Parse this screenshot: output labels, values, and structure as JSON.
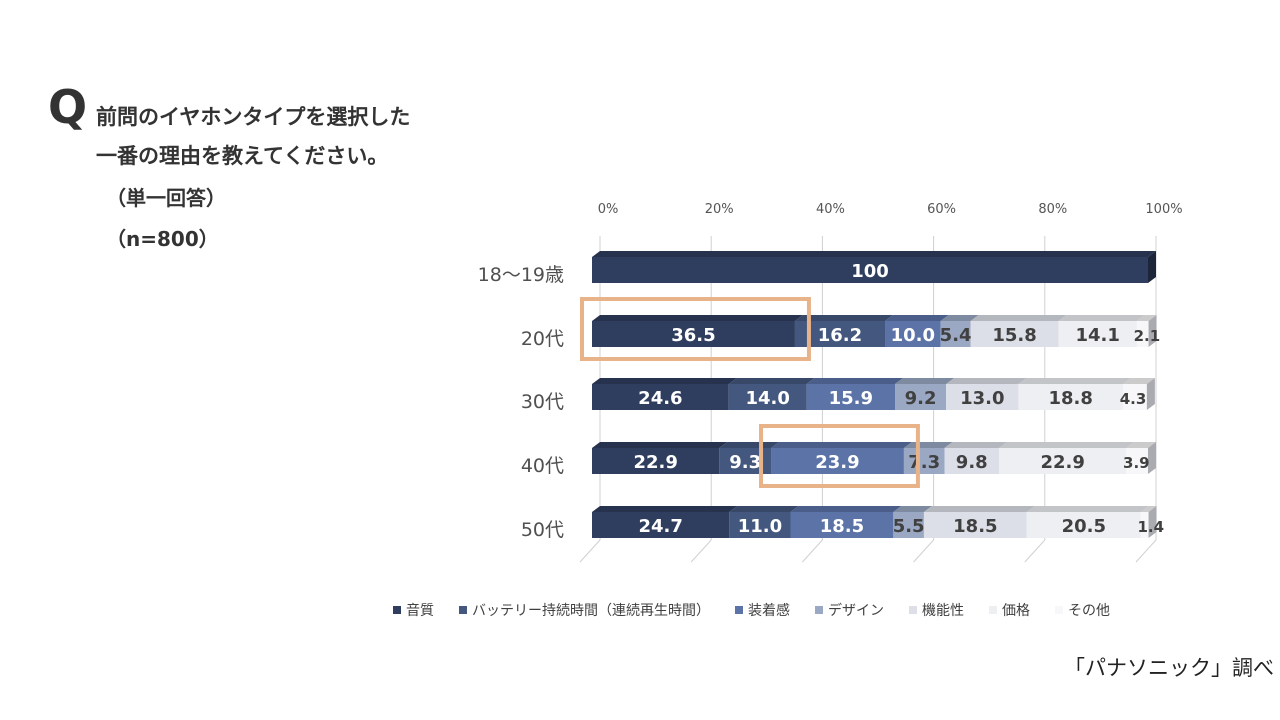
{
  "question": {
    "mark": "Q",
    "line1": "前問のイヤホンタイプを選択した",
    "line2": "一番の理由を教えてください。",
    "answer_type": "（単一回答）",
    "sample": "（n=800）"
  },
  "source": "「パナソニック」調べ",
  "colors": {
    "series": [
      "#2f3e5f",
      "#44587f",
      "#5b73a7",
      "#9aa8c3",
      "#dcdfe8",
      "#eeeff3",
      "#f7f7f9"
    ],
    "label_light": "#ffffff",
    "label_dark": "#404040",
    "highlight": "#e8b389",
    "grid": "#d0d0d0"
  },
  "chart_data": {
    "type": "bar",
    "orientation": "horizontal",
    "stacked": "100%",
    "categories": [
      "18〜19歳",
      "20代",
      "30代",
      "40代",
      "50代"
    ],
    "x_ticks": [
      "0%",
      "20%",
      "40%",
      "60%",
      "80%",
      "100%"
    ],
    "xlim": [
      0,
      100
    ],
    "grid": true,
    "legend_position": "bottom",
    "series": [
      {
        "name": "音質",
        "values": [
          100,
          36.5,
          24.6,
          22.9,
          24.7
        ],
        "labels": [
          "100",
          "36.5",
          "24.6",
          "22.9",
          "24.7"
        ]
      },
      {
        "name": "バッテリー持続時間（連続再生時間）",
        "values": [
          0,
          16.2,
          14.0,
          9.3,
          11.0
        ],
        "labels": [
          "",
          "16.2",
          "14.0",
          "9.3",
          "11.0"
        ]
      },
      {
        "name": "装着感",
        "values": [
          0,
          10.0,
          15.9,
          23.9,
          18.5
        ],
        "labels": [
          "",
          "10.0",
          "15.9",
          "23.9",
          "18.5"
        ]
      },
      {
        "name": "デザイン",
        "values": [
          0,
          5.4,
          9.2,
          7.3,
          5.5
        ],
        "labels": [
          "",
          "5.4",
          "9.2",
          "7.3",
          "5.5"
        ]
      },
      {
        "name": "機能性",
        "values": [
          0,
          15.8,
          13.0,
          9.8,
          18.5
        ],
        "labels": [
          "",
          "15.8",
          "13.0",
          "9.8",
          "18.5"
        ]
      },
      {
        "name": "価格",
        "values": [
          0,
          14.1,
          18.8,
          22.9,
          20.5
        ],
        "labels": [
          "",
          "14.1",
          "18.8",
          "22.9",
          "20.5"
        ]
      },
      {
        "name": "その他",
        "values": [
          0,
          2.1,
          4.3,
          3.9,
          1.4
        ],
        "labels": [
          "",
          "2.1",
          "4.3",
          "3.9",
          "1.4"
        ]
      }
    ],
    "highlights": [
      {
        "category": "20代",
        "series": "音質"
      },
      {
        "category": "40代",
        "series": "装着感"
      }
    ]
  }
}
